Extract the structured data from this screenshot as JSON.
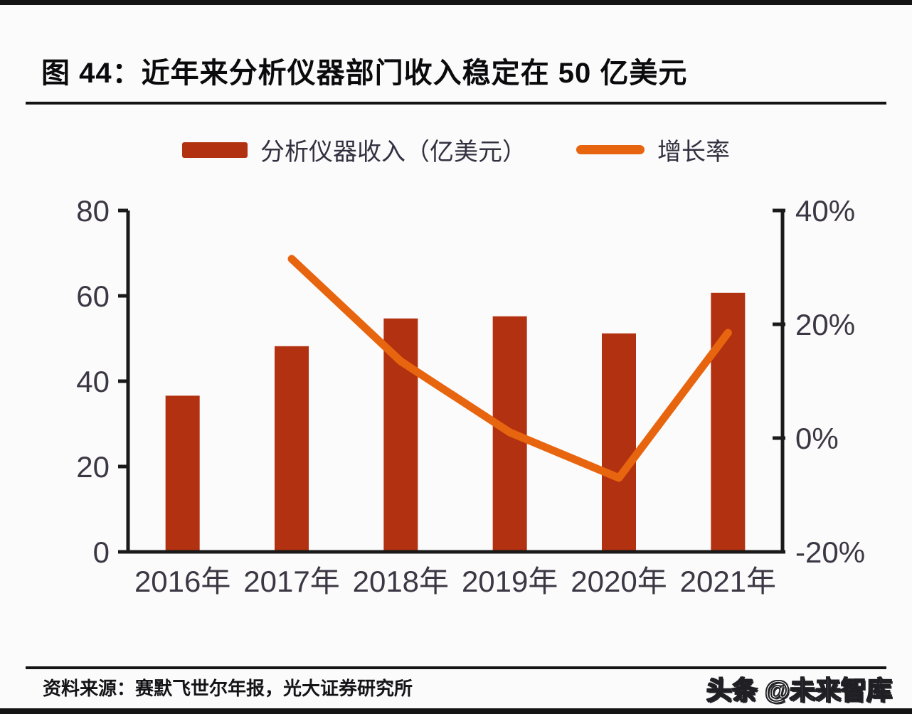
{
  "page": {
    "title": "图 44：近年来分析仪器部门收入稳定在 50 亿美元",
    "source_note": "资料来源：赛默飞世尔年报，光大证券研究所",
    "watermark": "头条 @未来智库"
  },
  "colors": {
    "bar": "#b23110",
    "line": "#e8650f",
    "axis": "#1a1a1a",
    "tick_label": "#3c3744",
    "rule": "#141414"
  },
  "chart_data": {
    "type": "bar",
    "subtype": "bar-with-line-dual-axis",
    "categories": [
      "2016年",
      "2017年",
      "2018年",
      "2019年",
      "2020年",
      "2021年"
    ],
    "series": [
      {
        "name": "分析仪器收入（亿美元）",
        "type": "bar",
        "axis": "left",
        "values": [
          36.6,
          48.2,
          54.7,
          55.2,
          51.2,
          60.7
        ]
      },
      {
        "name": "增长率",
        "type": "line",
        "axis": "right",
        "values": [
          null,
          31.5,
          13.5,
          1.0,
          -7.0,
          18.5
        ]
      }
    ],
    "left_axis": {
      "min": 0,
      "max": 80,
      "tick_values": [
        0,
        20,
        40,
        60,
        80
      ],
      "tick_labels": [
        "0",
        "20",
        "40",
        "60",
        "80"
      ]
    },
    "right_axis": {
      "min": -20,
      "max": 40,
      "tick_values": [
        -20,
        0,
        20,
        40
      ],
      "tick_labels": [
        "-20%",
        "0%",
        "20%",
        "40%"
      ]
    },
    "legend_position": "top",
    "grid": false
  }
}
